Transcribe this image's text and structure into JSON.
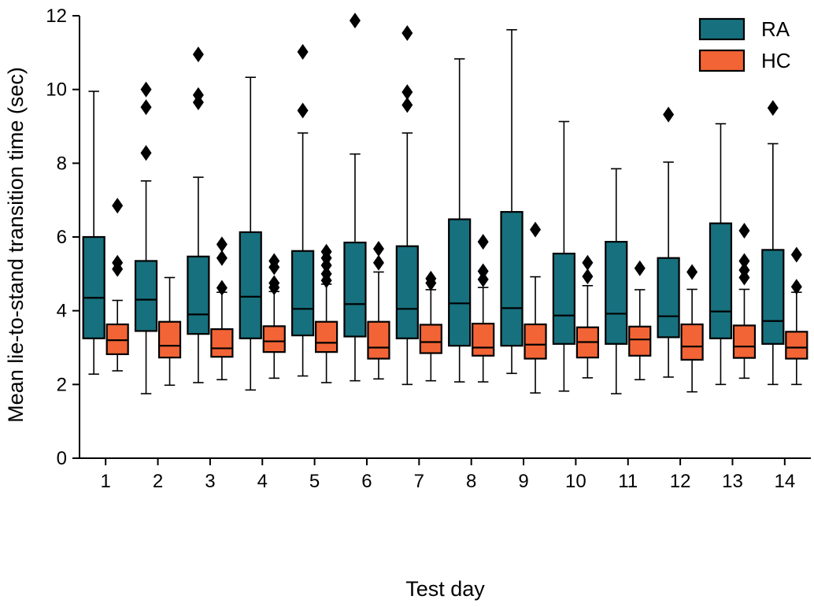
{
  "chart_data": {
    "type": "boxplot",
    "title": "",
    "xlabel": "Test day",
    "ylabel": "Mean lie-to-stand transition time (sec)",
    "ylim": [
      0,
      12
    ],
    "yticks": [
      "0",
      "2",
      "4",
      "6",
      "8",
      "10",
      "12"
    ],
    "categories": [
      "1",
      "2",
      "3",
      "4",
      "5",
      "6",
      "7",
      "8",
      "9",
      "10",
      "11",
      "12",
      "13",
      "14"
    ],
    "legend_position": "top-right",
    "series": [
      {
        "name": "RA",
        "color": "#17707e",
        "boxes": [
          {
            "q1": 3.25,
            "median": 4.35,
            "q3": 6.0,
            "whislo": 2.28,
            "whishi": 9.95,
            "fliers": []
          },
          {
            "q1": 3.45,
            "median": 4.3,
            "q3": 5.35,
            "whislo": 1.75,
            "whishi": 7.52,
            "fliers": [
              8.28,
              9.52,
              10.0
            ]
          },
          {
            "q1": 3.37,
            "median": 3.9,
            "q3": 5.47,
            "whislo": 2.05,
            "whishi": 7.62,
            "fliers": [
              9.65,
              9.85,
              10.95
            ]
          },
          {
            "q1": 3.25,
            "median": 4.38,
            "q3": 6.13,
            "whislo": 1.85,
            "whishi": 10.33,
            "fliers": []
          },
          {
            "q1": 3.33,
            "median": 4.05,
            "q3": 5.62,
            "whislo": 2.23,
            "whishi": 8.82,
            "fliers": [
              9.43,
              11.02
            ]
          },
          {
            "q1": 3.3,
            "median": 4.18,
            "q3": 5.85,
            "whislo": 2.1,
            "whishi": 8.25,
            "fliers": [
              11.87
            ]
          },
          {
            "q1": 3.25,
            "median": 4.05,
            "q3": 5.75,
            "whislo": 2.0,
            "whishi": 8.82,
            "fliers": [
              9.58,
              9.93,
              11.53
            ]
          },
          {
            "q1": 3.05,
            "median": 4.2,
            "q3": 6.48,
            "whislo": 2.07,
            "whishi": 10.83,
            "fliers": []
          },
          {
            "q1": 3.05,
            "median": 4.07,
            "q3": 6.68,
            "whislo": 2.3,
            "whishi": 11.62,
            "fliers": []
          },
          {
            "q1": 3.1,
            "median": 3.87,
            "q3": 5.55,
            "whislo": 1.82,
            "whishi": 9.13,
            "fliers": []
          },
          {
            "q1": 3.1,
            "median": 3.92,
            "q3": 5.87,
            "whislo": 1.75,
            "whishi": 7.85,
            "fliers": []
          },
          {
            "q1": 3.28,
            "median": 3.85,
            "q3": 5.43,
            "whislo": 2.2,
            "whishi": 8.03,
            "fliers": [
              9.32
            ]
          },
          {
            "q1": 3.25,
            "median": 3.98,
            "q3": 6.37,
            "whislo": 2.0,
            "whishi": 9.07,
            "fliers": []
          },
          {
            "q1": 3.1,
            "median": 3.72,
            "q3": 5.65,
            "whislo": 2.0,
            "whishi": 8.53,
            "fliers": [
              9.5
            ]
          }
        ]
      },
      {
        "name": "HC",
        "color": "#f26435",
        "boxes": [
          {
            "q1": 2.82,
            "median": 3.2,
            "q3": 3.63,
            "whislo": 2.37,
            "whishi": 4.28,
            "fliers": [
              5.13,
              5.3,
              6.85
            ]
          },
          {
            "q1": 2.73,
            "median": 3.05,
            "q3": 3.7,
            "whislo": 1.98,
            "whishi": 4.9,
            "fliers": []
          },
          {
            "q1": 2.75,
            "median": 2.98,
            "q3": 3.5,
            "whislo": 2.13,
            "whishi": 4.5,
            "fliers": [
              4.62,
              5.43,
              5.8
            ]
          },
          {
            "q1": 2.88,
            "median": 3.17,
            "q3": 3.58,
            "whislo": 2.17,
            "whishi": 4.52,
            "fliers": [
              4.63,
              4.75,
              5.18,
              5.35
            ]
          },
          {
            "q1": 2.88,
            "median": 3.13,
            "q3": 3.7,
            "whislo": 2.05,
            "whishi": 4.72,
            "fliers": [
              4.82,
              5.0,
              5.23,
              5.43,
              5.6
            ]
          },
          {
            "q1": 2.7,
            "median": 3.0,
            "q3": 3.7,
            "whislo": 2.15,
            "whishi": 5.05,
            "fliers": [
              5.3,
              5.68
            ]
          },
          {
            "q1": 2.85,
            "median": 3.15,
            "q3": 3.62,
            "whislo": 2.1,
            "whishi": 4.57,
            "fliers": [
              4.75,
              4.87
            ]
          },
          {
            "q1": 2.78,
            "median": 3.0,
            "q3": 3.65,
            "whislo": 2.07,
            "whishi": 4.63,
            "fliers": [
              4.85,
              5.07,
              5.87
            ]
          },
          {
            "q1": 2.7,
            "median": 3.08,
            "q3": 3.63,
            "whislo": 1.77,
            "whishi": 4.92,
            "fliers": [
              6.2
            ]
          },
          {
            "q1": 2.73,
            "median": 3.15,
            "q3": 3.55,
            "whislo": 2.18,
            "whishi": 4.68,
            "fliers": [
              4.93,
              5.3
            ]
          },
          {
            "q1": 2.78,
            "median": 3.22,
            "q3": 3.57,
            "whislo": 2.13,
            "whishi": 4.57,
            "fliers": [
              5.15
            ]
          },
          {
            "q1": 2.67,
            "median": 3.03,
            "q3": 3.63,
            "whislo": 1.8,
            "whishi": 4.58,
            "fliers": [
              5.05
            ]
          },
          {
            "q1": 2.72,
            "median": 3.03,
            "q3": 3.6,
            "whislo": 2.17,
            "whishi": 4.58,
            "fliers": [
              4.9,
              5.1,
              5.35,
              6.17
            ]
          },
          {
            "q1": 2.7,
            "median": 3.0,
            "q3": 3.43,
            "whislo": 2.0,
            "whishi": 4.5,
            "fliers": [
              4.65,
              5.52
            ]
          }
        ]
      }
    ]
  }
}
